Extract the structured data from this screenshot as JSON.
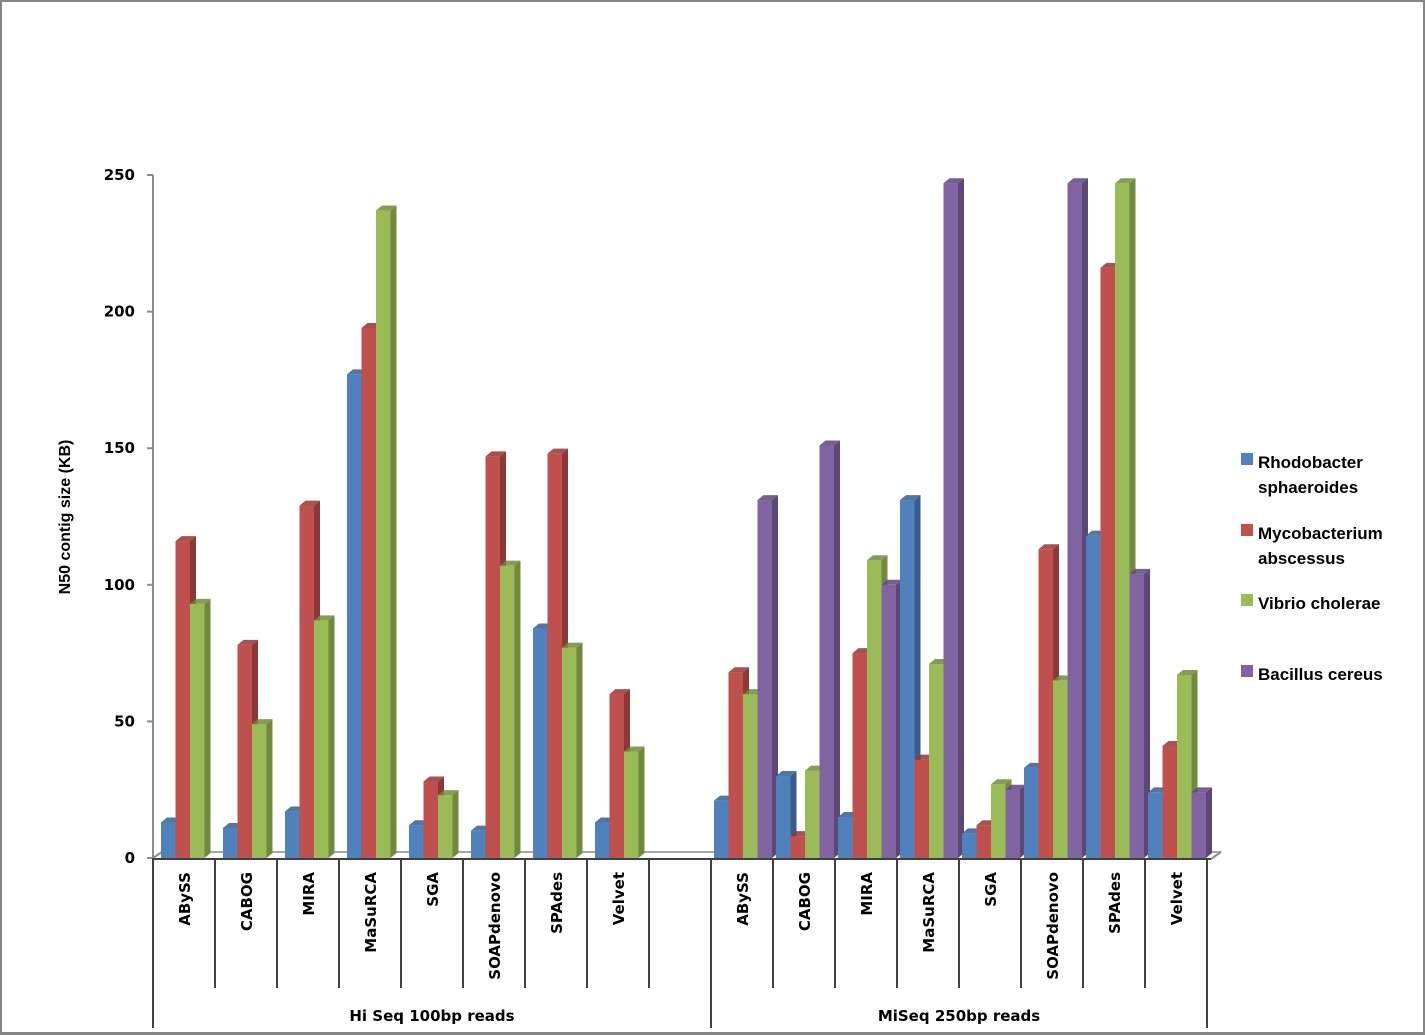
{
  "chart_data": {
    "type": "bar",
    "style": "3d-clustered-column",
    "title": "",
    "xlabel": "",
    "ylabel": "N50 contig size (KB)",
    "ylim": [
      0,
      250
    ],
    "yticks": [
      "0",
      "50",
      "100",
      "150",
      "200",
      "250"
    ],
    "grid": false,
    "legend_position": "right",
    "groups": [
      {
        "label": "Hi Seq 100bp reads",
        "categories": [
          "ABySS",
          "CABOG",
          "MIRA",
          "MaSuRCA",
          "SGA",
          "SOAPdenovo",
          "SPAdes",
          "Velvet",
          ""
        ],
        "series": [
          {
            "name": "Rhodobacter sphaeroides",
            "values": [
              13,
              11,
              17,
              177,
              12,
              10,
              84,
              13,
              null
            ]
          },
          {
            "name": "Mycobacterium abscessus",
            "values": [
              116,
              78,
              129,
              194,
              28,
              147,
              148,
              60,
              null
            ]
          },
          {
            "name": "Vibrio cholerae",
            "values": [
              93,
              49,
              87,
              237,
              23,
              107,
              77,
              39,
              null
            ]
          }
        ]
      },
      {
        "label": "MiSeq 250bp reads",
        "categories": [
          "ABySS",
          "CABOG",
          "MIRA",
          "MaSuRCA",
          "SGA",
          "SOAPdenovo",
          "SPAdes",
          "Velvet"
        ],
        "series": [
          {
            "name": "Rhodobacter sphaeroides",
            "values": [
              21,
              30,
              15,
              131,
              9,
              33,
              118,
              24
            ]
          },
          {
            "name": "Mycobacterium abscessus",
            "values": [
              68,
              8,
              75,
              36,
              12,
              113,
              216,
              41
            ]
          },
          {
            "name": "Vibrio cholerae",
            "values": [
              60,
              32,
              109,
              71,
              27,
              65,
              247,
              67
            ]
          },
          {
            "name": "Bacillus cereus",
            "values": [
              131,
              151,
              100,
              247,
              25,
              247,
              104,
              24
            ]
          }
        ]
      }
    ],
    "legend": [
      {
        "label_lines": [
          "Rhodobacter",
          "sphaeroides"
        ],
        "color": "#4f81bd"
      },
      {
        "label_lines": [
          "Mycobacterium",
          "abscessus"
        ],
        "color": "#c0504d"
      },
      {
        "label_lines": [
          "Vibrio cholerae"
        ],
        "color": "#9bbb59"
      },
      {
        "label_lines": [
          "Bacillus cereus"
        ],
        "color": "#8064a2"
      }
    ],
    "colors": {
      "Rhodobacter sphaeroides": {
        "front": "#4f81bd",
        "side": "#385d8a"
      },
      "Mycobacterium abscessus": {
        "front": "#c0504d",
        "side": "#8c3836"
      },
      "Vibrio cholerae": {
        "front": "#9bbb59",
        "side": "#71893f"
      },
      "Bacillus cereus": {
        "front": "#8064a2",
        "side": "#5c4776"
      }
    }
  }
}
